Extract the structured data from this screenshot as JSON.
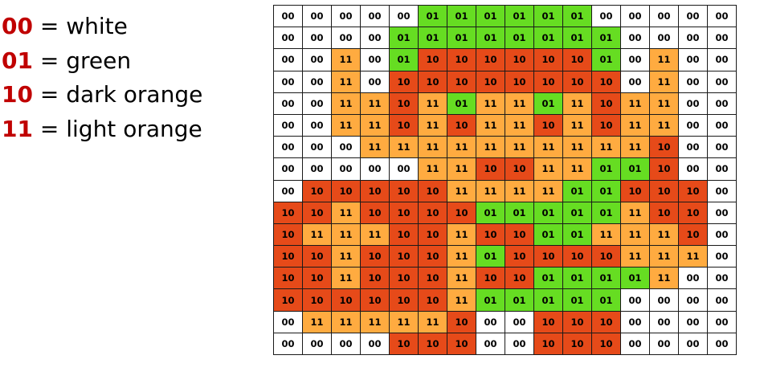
{
  "legend": [
    {
      "code": "00",
      "desc": " = white"
    },
    {
      "code": "01",
      "desc": " = green"
    },
    {
      "code": "10",
      "desc": " = dark orange"
    },
    {
      "code": "11",
      "desc": " = light orange"
    }
  ],
  "colors": {
    "legend_code": "#c00000",
    "00": "#ffffff",
    "01": "#66dd22",
    "10": "#e64a19",
    "11": "#ffab40",
    "border": "#1a1a1a"
  },
  "grid": [
    [
      "00",
      "00",
      "00",
      "00",
      "00",
      "01",
      "01",
      "01",
      "01",
      "01",
      "01",
      "00",
      "00",
      "00",
      "00",
      "00"
    ],
    [
      "00",
      "00",
      "00",
      "00",
      "01",
      "01",
      "01",
      "01",
      "01",
      "01",
      "01",
      "01",
      "00",
      "00",
      "00",
      "00"
    ],
    [
      "00",
      "00",
      "11",
      "00",
      "01",
      "10",
      "10",
      "10",
      "10",
      "10",
      "10",
      "01",
      "00",
      "11",
      "00",
      "00"
    ],
    [
      "00",
      "00",
      "11",
      "00",
      "10",
      "10",
      "10",
      "10",
      "10",
      "10",
      "10",
      "10",
      "00",
      "11",
      "00",
      "00"
    ],
    [
      "00",
      "00",
      "11",
      "11",
      "10",
      "11",
      "01",
      "11",
      "11",
      "01",
      "11",
      "10",
      "11",
      "11",
      "00",
      "00"
    ],
    [
      "00",
      "00",
      "11",
      "11",
      "10",
      "11",
      "10",
      "11",
      "11",
      "10",
      "11",
      "10",
      "11",
      "11",
      "00",
      "00"
    ],
    [
      "00",
      "00",
      "00",
      "11",
      "11",
      "11",
      "11",
      "11",
      "11",
      "11",
      "11",
      "11",
      "11",
      "10",
      "00",
      "00"
    ],
    [
      "00",
      "00",
      "00",
      "00",
      "00",
      "11",
      "11",
      "10",
      "10",
      "11",
      "11",
      "01",
      "01",
      "10",
      "00",
      "00"
    ],
    [
      "00",
      "10",
      "10",
      "10",
      "10",
      "10",
      "11",
      "11",
      "11",
      "11",
      "01",
      "01",
      "10",
      "10",
      "10",
      "00"
    ],
    [
      "10",
      "10",
      "11",
      "10",
      "10",
      "10",
      "10",
      "01",
      "01",
      "01",
      "01",
      "01",
      "11",
      "10",
      "10",
      "00"
    ],
    [
      "10",
      "11",
      "11",
      "11",
      "10",
      "10",
      "11",
      "10",
      "10",
      "01",
      "01",
      "11",
      "11",
      "11",
      "10",
      "00"
    ],
    [
      "10",
      "10",
      "11",
      "10",
      "10",
      "10",
      "11",
      "01",
      "10",
      "10",
      "10",
      "10",
      "11",
      "11",
      "11",
      "00"
    ],
    [
      "10",
      "10",
      "11",
      "10",
      "10",
      "10",
      "11",
      "10",
      "10",
      "01",
      "01",
      "01",
      "01",
      "11",
      "00",
      "00"
    ],
    [
      "10",
      "10",
      "10",
      "10",
      "10",
      "10",
      "11",
      "01",
      "01",
      "01",
      "01",
      "01",
      "00",
      "00",
      "00",
      "00"
    ],
    [
      "00",
      "11",
      "11",
      "11",
      "11",
      "11",
      "10",
      "00",
      "00",
      "10",
      "10",
      "10",
      "00",
      "00",
      "00",
      "00"
    ],
    [
      "00",
      "00",
      "00",
      "00",
      "10",
      "10",
      "10",
      "00",
      "00",
      "10",
      "10",
      "10",
      "00",
      "00",
      "00",
      "00"
    ]
  ]
}
